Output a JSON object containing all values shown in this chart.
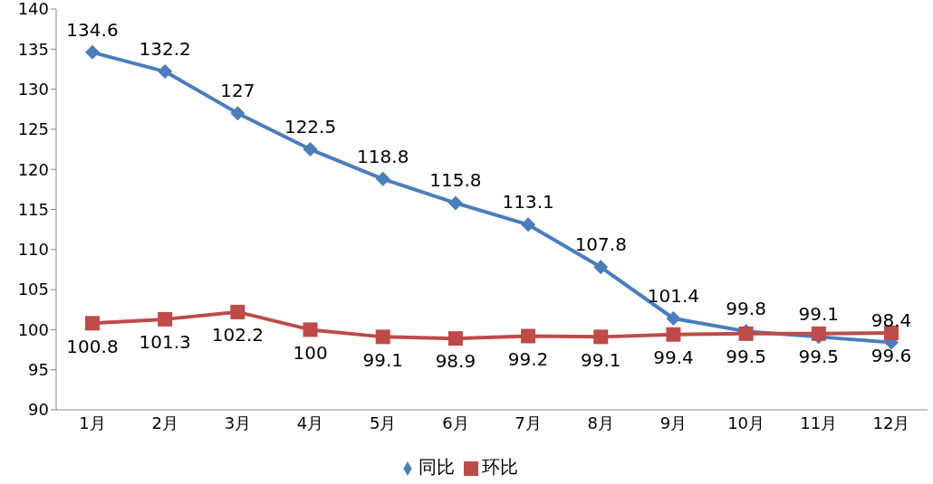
{
  "chart_data": {
    "type": "line",
    "categories": [
      "1月",
      "2月",
      "3月",
      "4月",
      "5月",
      "6月",
      "7月",
      "8月",
      "9月",
      "10月",
      "11月",
      "12月"
    ],
    "series": [
      {
        "name": "同比",
        "color": "#4a7ebb",
        "marker": "diamond",
        "values": [
          134.6,
          132.2,
          127,
          122.5,
          118.8,
          115.8,
          113.1,
          107.8,
          101.4,
          99.8,
          99.1,
          98.4
        ]
      },
      {
        "name": "环比",
        "color": "#be4b48",
        "marker": "square",
        "values": [
          100.8,
          101.3,
          102.2,
          100,
          99.1,
          98.9,
          99.2,
          99.1,
          99.4,
          99.5,
          99.5,
          99.6
        ]
      }
    ],
    "ylim": [
      90,
      140
    ],
    "yticks": [
      90,
      95,
      100,
      105,
      110,
      115,
      120,
      125,
      130,
      135,
      140
    ],
    "data_labels": true,
    "legend": "bottom",
    "line_style": "solid"
  }
}
